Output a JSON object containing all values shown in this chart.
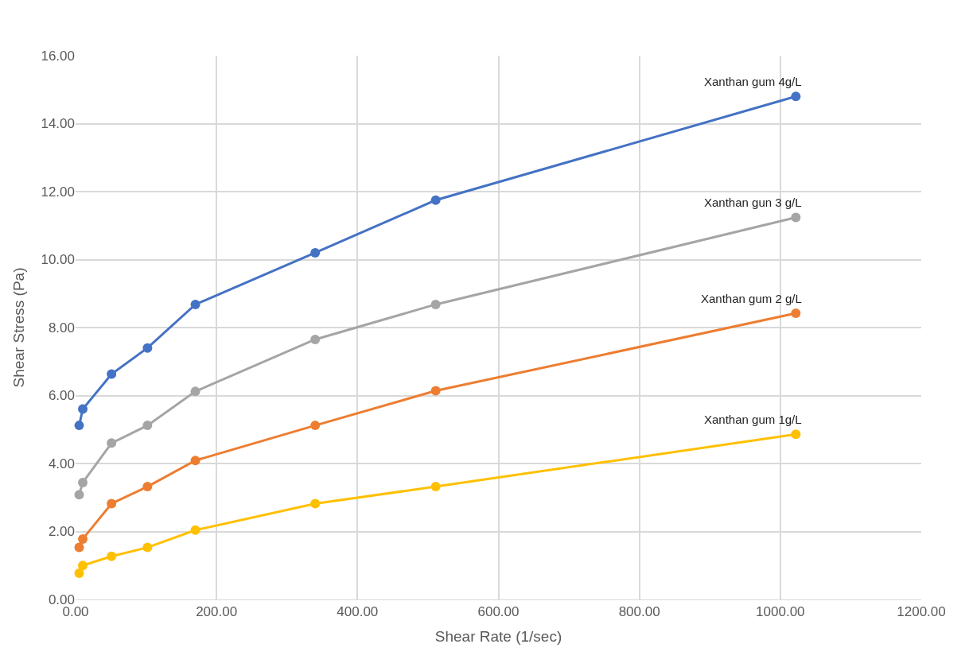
{
  "chart_data": {
    "type": "line",
    "xlabel": "Shear Rate (1/sec)",
    "ylabel": "Shear Stress (Pa)",
    "x": [
      5.1,
      10.2,
      51,
      102,
      170,
      340,
      511,
      1022
    ],
    "series": [
      {
        "name": "Xanthan gum 4g/L",
        "color": "#4472c4",
        "values": [
          5.12,
          5.6,
          6.63,
          7.4,
          8.68,
          10.2,
          11.75,
          14.8
        ]
      },
      {
        "name": "Xanthan gun 3 g/L",
        "color": "#a5a5a5",
        "values": [
          3.08,
          3.44,
          4.6,
          5.12,
          6.12,
          7.65,
          8.68,
          11.24
        ]
      },
      {
        "name": "Xanthan gum 2 g/L",
        "color": "#ed7d31",
        "values": [
          1.53,
          1.78,
          2.82,
          3.32,
          4.09,
          5.12,
          6.14,
          8.42
        ]
      },
      {
        "name": "Xanthan gum 1g/L",
        "color": "#ffc000",
        "values": [
          0.77,
          1.0,
          1.27,
          1.53,
          2.04,
          2.82,
          3.32,
          4.86
        ]
      }
    ],
    "xlim": [
      0,
      1200
    ],
    "ylim": [
      0,
      16
    ],
    "xticks": [
      {
        "value": 0,
        "label": "0.00"
      },
      {
        "value": 200,
        "label": "200.00"
      },
      {
        "value": 400,
        "label": "400.00"
      },
      {
        "value": 600,
        "label": "600.00"
      },
      {
        "value": 800,
        "label": "800.00"
      },
      {
        "value": 1000,
        "label": "1000.00"
      },
      {
        "value": 1200,
        "label": "1200.00"
      }
    ],
    "yticks": [
      {
        "value": 0,
        "label": "0.00"
      },
      {
        "value": 2,
        "label": "2.00"
      },
      {
        "value": 4,
        "label": "4.00"
      },
      {
        "value": 6,
        "label": "6.00"
      },
      {
        "value": 8,
        "label": "8.00"
      },
      {
        "value": 10,
        "label": "10.00"
      },
      {
        "value": 12,
        "label": "12.00"
      },
      {
        "value": 14,
        "label": "14.00"
      },
      {
        "value": 16,
        "label": "16.00"
      }
    ],
    "grid": true,
    "marker": "circle",
    "line_style": "solid",
    "legend": false
  }
}
